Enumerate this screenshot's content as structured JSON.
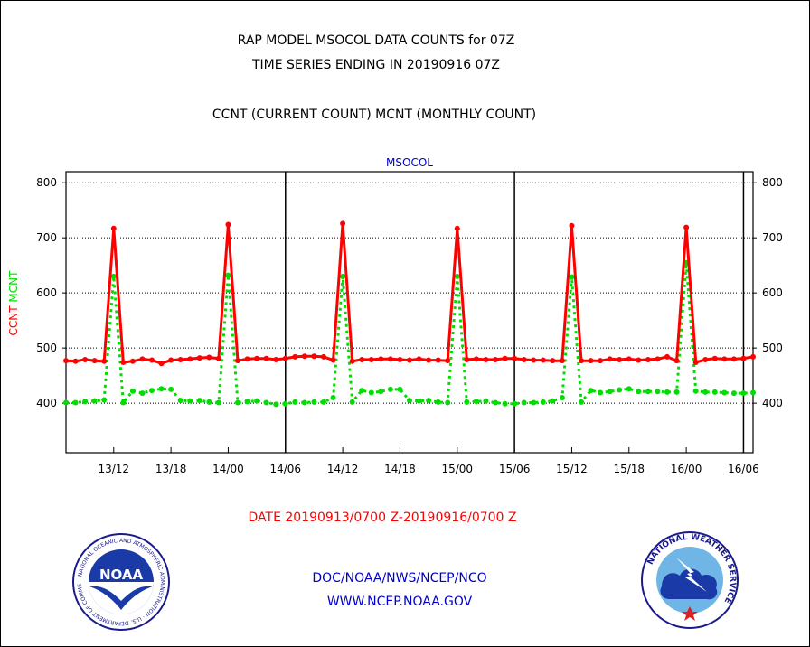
{
  "header": {
    "title_line1": "RAP MODEL MSOCOL DATA COUNTS for 07Z",
    "title_line2": "TIME SERIES ENDING IN 20190916 07Z",
    "subtitle": "CCNT (CURRENT COUNT) MCNT (MONTHLY COUNT)"
  },
  "footer": {
    "date_range": "DATE 20190913/0700 Z-20190916/0700 Z",
    "org_line": "DOC/NOAA/NWS/NCEP/NCO",
    "url_line": "WWW.NCEP.NOAA.GOV",
    "left_logo": {
      "name": "noaa-logo",
      "center_text": "NOAA",
      "ring_text": "NATIONAL OCEANIC AND ATMOSPHERIC ADMINISTRATION · U.S. DEPARTMENT OF COMMERCE"
    },
    "right_logo": {
      "name": "national-weather-service-logo",
      "ring_text": "NATIONAL WEATHER SERVICE"
    }
  },
  "colors": {
    "ccnt": "#ff0000",
    "mcnt": "#00dd00",
    "plot_label": "#0000cc",
    "date_text": "#ff0000",
    "footer_text": "#0000cc"
  },
  "chart_data": {
    "type": "line",
    "title": "MSOCOL",
    "ylabel_left": [
      "CCNT",
      "MCNT"
    ],
    "ylim": [
      310,
      820
    ],
    "yticks": [
      400,
      500,
      600,
      700,
      800
    ],
    "x_start": "20190913/0700",
    "xticks": [
      "13/12",
      "13/18",
      "14/00",
      "14/06",
      "14/12",
      "14/18",
      "15/00",
      "15/06",
      "15/12",
      "15/18",
      "16/00",
      "16/06"
    ],
    "xtick_hours": [
      5,
      11,
      17,
      23,
      29,
      35,
      41,
      47,
      53,
      59,
      65,
      71
    ],
    "day_boundaries_hours": [
      23,
      47,
      71
    ],
    "grid": "horizontal dotted",
    "series": [
      {
        "name": "CCNT",
        "color": "#ff0000",
        "x_hours": [
          0,
          1,
          2,
          3,
          4,
          5,
          6,
          7,
          8,
          9,
          10,
          11,
          12,
          13,
          14,
          15,
          16,
          17,
          18,
          19,
          20,
          21,
          22,
          23,
          24,
          25,
          26,
          27,
          28,
          29,
          30,
          31,
          32,
          33,
          34,
          35,
          36,
          37,
          38,
          39,
          40,
          41,
          42,
          43,
          44,
          45,
          46,
          47,
          48,
          49,
          50,
          51,
          52,
          53,
          54,
          55,
          56,
          57,
          58,
          59,
          60,
          61,
          62,
          63,
          64,
          65,
          66,
          67,
          68,
          69,
          70,
          71,
          72
        ],
        "values": [
          477,
          476,
          479,
          477,
          476,
          717,
          474,
          476,
          480,
          478,
          472,
          478,
          479,
          480,
          482,
          483,
          481,
          724,
          477,
          480,
          481,
          481,
          479,
          481,
          484,
          485,
          485,
          484,
          478,
          726,
          476,
          479,
          479,
          480,
          480,
          479,
          478,
          480,
          478,
          478,
          477,
          717,
          479,
          480,
          479,
          479,
          481,
          481,
          479,
          478,
          478,
          477,
          477,
          722,
          477,
          477,
          477,
          480,
          479,
          480,
          478,
          479,
          480,
          484,
          477,
          719,
          474,
          479,
          481,
          480,
          480,
          481,
          484
        ]
      },
      {
        "name": "MCNT",
        "color": "#00dd00",
        "x_hours": [
          0,
          1,
          2,
          3,
          4,
          5,
          6,
          7,
          8,
          9,
          10,
          11,
          12,
          13,
          14,
          15,
          16,
          17,
          18,
          19,
          20,
          21,
          22,
          23,
          24,
          25,
          26,
          27,
          28,
          29,
          30,
          31,
          32,
          33,
          34,
          35,
          36,
          37,
          38,
          39,
          40,
          41,
          42,
          43,
          44,
          45,
          46,
          47,
          48,
          49,
          50,
          51,
          52,
          53,
          54,
          55,
          56,
          57,
          58,
          59,
          60,
          61,
          62,
          63,
          64,
          65,
          66,
          67,
          68,
          69,
          70,
          71,
          72
        ],
        "values": [
          401,
          401,
          403,
          404,
          406,
          630,
          401,
          422,
          418,
          423,
          426,
          425,
          405,
          404,
          405,
          402,
          401,
          632,
          401,
          403,
          404,
          401,
          398,
          399,
          402,
          401,
          402,
          402,
          410,
          630,
          402,
          423,
          419,
          421,
          425,
          425,
          405,
          404,
          405,
          402,
          401,
          630,
          402,
          403,
          404,
          401,
          399,
          399,
          401,
          401,
          402,
          404,
          410,
          629,
          402,
          423,
          419,
          421,
          424,
          426,
          421,
          421,
          421,
          420,
          420,
          655,
          422,
          420,
          420,
          419,
          418,
          418,
          419
        ]
      }
    ]
  }
}
